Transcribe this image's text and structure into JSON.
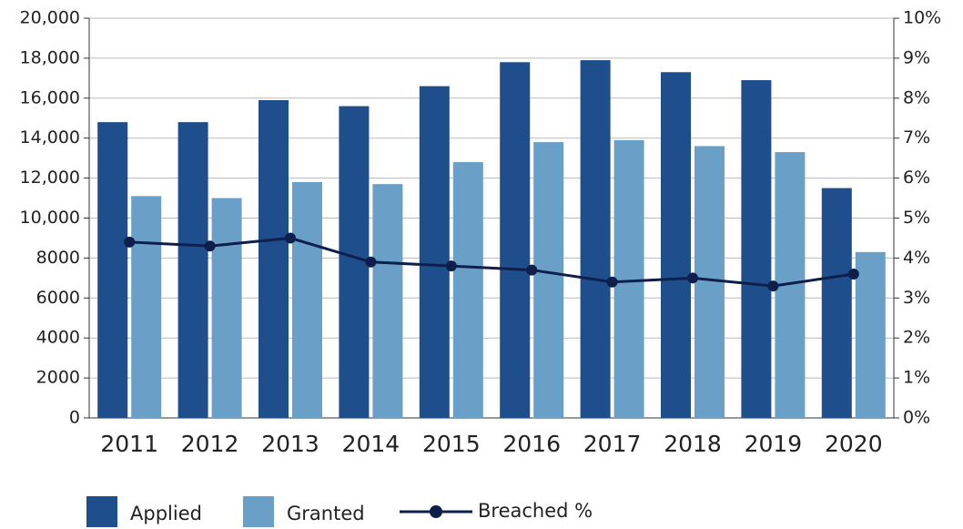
{
  "chart_data": {
    "type": "bar",
    "categories": [
      "2011",
      "2012",
      "2013",
      "2014",
      "2015",
      "2016",
      "2017",
      "2018",
      "2019",
      "2020"
    ],
    "series": [
      {
        "name": "Applied",
        "color": "#1f4e8c",
        "values": [
          14800,
          14800,
          15900,
          15600,
          16600,
          17800,
          17900,
          17300,
          16900,
          11500
        ]
      },
      {
        "name": "Granted",
        "color": "#6aa0c8",
        "values": [
          11100,
          11000,
          11800,
          11700,
          12800,
          13800,
          13900,
          13600,
          13300,
          8300
        ]
      },
      {
        "name": "Breached %",
        "color": "#0f1f4b",
        "type": "line",
        "axis": "y2",
        "values": [
          4.4,
          4.3,
          4.5,
          3.9,
          3.8,
          3.7,
          3.4,
          3.5,
          3.3,
          3.6
        ]
      }
    ],
    "ylim": [
      0,
      20000
    ],
    "yticks": [
      0,
      2000,
      4000,
      6000,
      8000,
      {
        "value": 10000,
        "label": "10,000"
      },
      {
        "value": 12000,
        "label": "12,000"
      },
      {
        "value": 14000,
        "label": "14,000"
      },
      {
        "value": 16000,
        "label": "16,000"
      },
      {
        "value": 18000,
        "label": "18,000"
      },
      {
        "value": 20000,
        "label": "20,000"
      }
    ],
    "y2lim": [
      0,
      10
    ],
    "y2ticks": [
      {
        "value": 0,
        "label": "0%"
      },
      {
        "value": 1,
        "label": "1%"
      },
      {
        "value": 2,
        "label": "2%"
      },
      {
        "value": 3,
        "label": "3%"
      },
      {
        "value": 4,
        "label": "4%"
      },
      {
        "value": 5,
        "label": "5%"
      },
      {
        "value": 6,
        "label": "6%"
      },
      {
        "value": 7,
        "label": "7%"
      },
      {
        "value": 8,
        "label": "8%"
      },
      {
        "value": 9,
        "label": "9%"
      },
      {
        "value": 10,
        "label": "10%"
      }
    ],
    "grid": true
  }
}
